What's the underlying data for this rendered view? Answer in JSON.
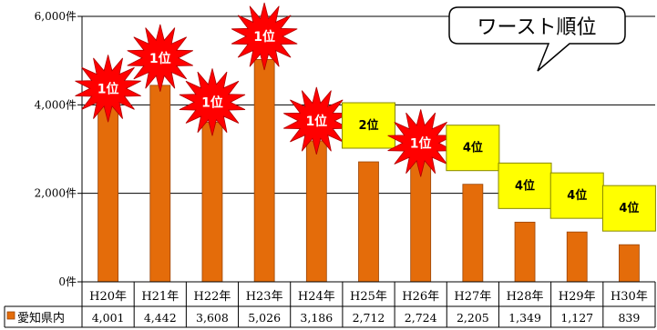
{
  "colors": {
    "bar": "#e46c0a",
    "bar_edge": "#9a4507",
    "star_fill": "#ff0000",
    "box_fill": "#ffff00",
    "axis": "#000000",
    "grid": "#000000",
    "legend_swatch": "#e46c0a"
  },
  "callout": {
    "text": "ワースト順位",
    "icon": "speech-bubble-icon"
  },
  "chart_data": {
    "type": "bar",
    "categories": [
      "H20年",
      "H21年",
      "H22年",
      "H23年",
      "H24年",
      "H25年",
      "H26年",
      "H27年",
      "H28年",
      "H29年",
      "H30年"
    ],
    "series": [
      {
        "name": "愛知県内",
        "values": [
          4001,
          4442,
          3608,
          5026,
          3186,
          2712,
          2724,
          2205,
          1349,
          1127,
          839
        ],
        "value_labels": [
          "4,001",
          "4,442",
          "3,608",
          "5,026",
          "3,186",
          "2,712",
          "2,724",
          "2,205",
          "1,349",
          "1,127",
          "839"
        ]
      }
    ],
    "ylim": [
      0,
      6000
    ],
    "yticks": [
      0,
      2000,
      4000,
      6000
    ],
    "ytick_labels": [
      "0件",
      "2,000件",
      "4,000件",
      "6,000件"
    ],
    "grid": true,
    "legend_placement": "data-table-left",
    "ranks": [
      {
        "label": "1位",
        "style": "star"
      },
      {
        "label": "1位",
        "style": "star"
      },
      {
        "label": "1位",
        "style": "star"
      },
      {
        "label": "1位",
        "style": "star"
      },
      {
        "label": "1位",
        "style": "star"
      },
      {
        "label": "2位",
        "style": "box"
      },
      {
        "label": "1位",
        "style": "star"
      },
      {
        "label": "4位",
        "style": "box"
      },
      {
        "label": "4位",
        "style": "box"
      },
      {
        "label": "4位",
        "style": "box"
      },
      {
        "label": "4位",
        "style": "box"
      }
    ]
  }
}
